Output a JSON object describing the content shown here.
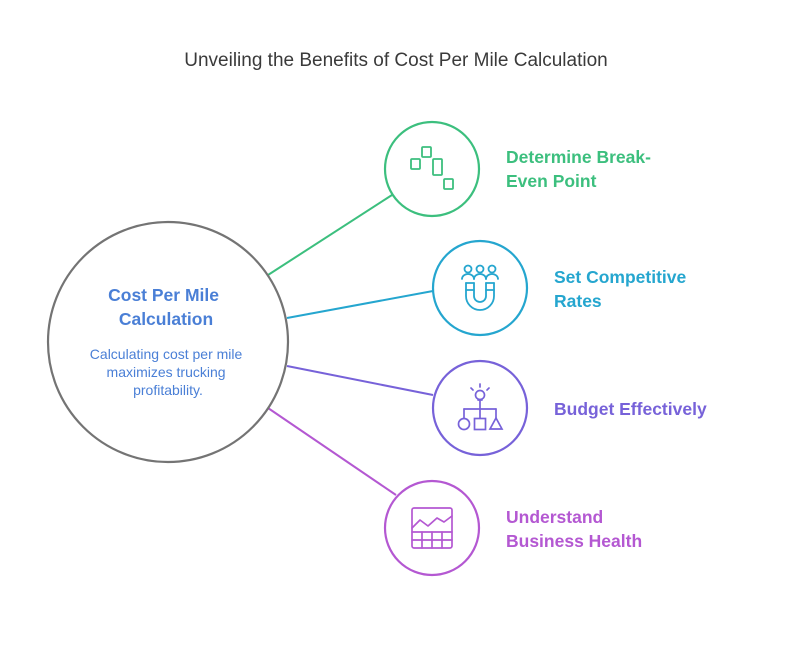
{
  "title": "Unveiling the Benefits of Cost Per Mile Calculation",
  "center": {
    "title_lines": [
      "Cost Per Mile",
      "Calculation"
    ],
    "desc_lines": [
      "Calculating cost per mile",
      "maximizes trucking",
      "profitability."
    ],
    "color": "#4a7fd6",
    "stroke": "#747474"
  },
  "items": [
    {
      "icon": "candlestick-chart-icon",
      "label_lines": [
        "Determine Break-",
        "Even Point"
      ],
      "color": "#3cbf7e"
    },
    {
      "icon": "magnet-people-icon",
      "label_lines": [
        "Set Competitive",
        "Rates"
      ],
      "color": "#25a6cf"
    },
    {
      "icon": "lightbulb-flowchart-icon",
      "label_lines": [
        "Budget Effectively"
      ],
      "color": "#7762d9"
    },
    {
      "icon": "line-chart-grid-icon",
      "label_lines": [
        "Understand",
        "Business Health"
      ],
      "color": "#b458d2"
    }
  ]
}
